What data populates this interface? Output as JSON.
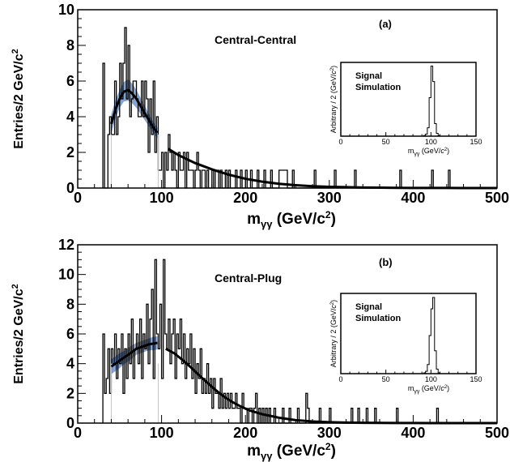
{
  "chart_data": [
    {
      "type": "histogram",
      "panel_label": "(a)",
      "region": "Central-Central",
      "xlabel": "m",
      "xlabel_sub": "γγ",
      "xlabel_unit": " (GeV/c",
      "xlabel_sup": "2",
      "xlabel_end": ")",
      "ylabel": "Entries/2 GeV/c",
      "ylabel_sup": "2",
      "xlim": [
        0,
        500
      ],
      "ylim": [
        0,
        10
      ],
      "xticks": [
        0,
        100,
        200,
        300,
        400,
        500
      ],
      "yticks": [
        0,
        2,
        4,
        6,
        8,
        10
      ],
      "bin_width": 2,
      "bins": [
        [
          30,
          7
        ],
        [
          32,
          0
        ],
        [
          34,
          0
        ],
        [
          36,
          3
        ],
        [
          38,
          4
        ],
        [
          40,
          3
        ],
        [
          42,
          3
        ],
        [
          44,
          6
        ],
        [
          46,
          3
        ],
        [
          48,
          4
        ],
        [
          50,
          7
        ],
        [
          52,
          5
        ],
        [
          54,
          7
        ],
        [
          56,
          9
        ],
        [
          58,
          5
        ],
        [
          60,
          8
        ],
        [
          62,
          4
        ],
        [
          64,
          5
        ],
        [
          66,
          6
        ],
        [
          68,
          6
        ],
        [
          70,
          5
        ],
        [
          72,
          4
        ],
        [
          74,
          4
        ],
        [
          76,
          6
        ],
        [
          78,
          4
        ],
        [
          80,
          6
        ],
        [
          82,
          5
        ],
        [
          84,
          2
        ],
        [
          86,
          5
        ],
        [
          88,
          3
        ],
        [
          90,
          6
        ],
        [
          92,
          2
        ],
        [
          94,
          4
        ],
        [
          96,
          1
        ],
        [
          98,
          1
        ],
        [
          100,
          2
        ],
        [
          102,
          0
        ],
        [
          104,
          2
        ],
        [
          106,
          1
        ],
        [
          108,
          3
        ],
        [
          110,
          2
        ],
        [
          112,
          1
        ],
        [
          114,
          2
        ],
        [
          116,
          1
        ],
        [
          118,
          0
        ],
        [
          120,
          2
        ],
        [
          122,
          1
        ],
        [
          124,
          1
        ],
        [
          126,
          2
        ],
        [
          128,
          0
        ],
        [
          130,
          2
        ],
        [
          132,
          1
        ],
        [
          134,
          1
        ],
        [
          136,
          1
        ],
        [
          138,
          0
        ],
        [
          140,
          1
        ],
        [
          142,
          2
        ],
        [
          144,
          1
        ],
        [
          146,
          0
        ],
        [
          148,
          1
        ],
        [
          150,
          1
        ],
        [
          152,
          0
        ],
        [
          154,
          1
        ],
        [
          156,
          0
        ],
        [
          158,
          0
        ],
        [
          160,
          1
        ],
        [
          162,
          0
        ],
        [
          164,
          1
        ],
        [
          166,
          1
        ],
        [
          168,
          0
        ],
        [
          170,
          1
        ],
        [
          172,
          0
        ],
        [
          174,
          0
        ],
        [
          176,
          1
        ],
        [
          178,
          0
        ],
        [
          180,
          1
        ],
        [
          182,
          0
        ],
        [
          184,
          0
        ],
        [
          186,
          0
        ],
        [
          188,
          1
        ],
        [
          190,
          0
        ],
        [
          192,
          0
        ],
        [
          194,
          1
        ],
        [
          196,
          0
        ],
        [
          198,
          0
        ],
        [
          200,
          1
        ],
        [
          202,
          0
        ],
        [
          204,
          0
        ],
        [
          206,
          1
        ],
        [
          208,
          0
        ],
        [
          210,
          0
        ],
        [
          212,
          0
        ],
        [
          214,
          1
        ],
        [
          216,
          0
        ],
        [
          218,
          0
        ],
        [
          220,
          0
        ],
        [
          222,
          1
        ],
        [
          224,
          0
        ],
        [
          226,
          0
        ],
        [
          228,
          0
        ],
        [
          230,
          1
        ],
        [
          232,
          0
        ],
        [
          240,
          1
        ],
        [
          250,
          0
        ],
        [
          256,
          1
        ],
        [
          258,
          0
        ],
        [
          282,
          1
        ],
        [
          284,
          0
        ],
        [
          306,
          1
        ],
        [
          308,
          0
        ],
        [
          330,
          1
        ],
        [
          332,
          0
        ],
        [
          384,
          1
        ],
        [
          386,
          0
        ],
        [
          422,
          1
        ],
        [
          424,
          0
        ],
        [
          442,
          1
        ],
        [
          444,
          0
        ]
      ],
      "fit_low": {
        "x": [
          40,
          45,
          50,
          55,
          60,
          65,
          70,
          75,
          80,
          85,
          90,
          95
        ],
        "y": [
          3.6,
          4.4,
          5.0,
          5.4,
          5.5,
          5.3,
          5.0,
          4.6,
          4.2,
          3.8,
          3.4,
          3.1
        ]
      },
      "fit_high": {
        "x": [
          108,
          120,
          140,
          160,
          180,
          200,
          220,
          240,
          260,
          280,
          300,
          320,
          340,
          360,
          380,
          400,
          420,
          440,
          460,
          480,
          500
        ],
        "y": [
          2.2,
          1.85,
          1.4,
          1.05,
          0.75,
          0.52,
          0.36,
          0.24,
          0.16,
          0.1,
          0.07,
          0.05,
          0.03,
          0.02,
          0.012,
          0.008,
          0.005,
          0.003,
          0.002,
          0.001,
          0.001
        ]
      },
      "band_low": {
        "x": [
          40,
          45,
          50,
          55,
          60,
          65,
          70,
          75,
          80,
          85,
          90,
          95
        ],
        "half_width": [
          0.55,
          0.5,
          0.5,
          0.55,
          0.6,
          0.55,
          0.5,
          0.45,
          0.4,
          0.35,
          0.3,
          0.3
        ]
      },
      "inset": {
        "label_line1": "Signal",
        "label_line2": "Simulation",
        "ylabel": "Arbitrary / 2 (GeV/",
        "ylabel_c": "c",
        "ylabel_sup": "2",
        "ylabel_end": ")",
        "xlabel": "m",
        "xlabel_sub": "γγ",
        "xlabel_unit": " (GeV/",
        "xlabel_c": "c",
        "xlabel_sup": "2",
        "xlabel_end": ")",
        "xlim": [
          0,
          150
        ],
        "xticks": [
          0,
          50,
          100,
          150
        ],
        "peak_x": [
          92,
          94,
          96,
          98,
          100,
          102,
          104,
          106,
          108
        ],
        "peak_y": [
          0.01,
          0.03,
          0.12,
          0.55,
          1.0,
          0.78,
          0.18,
          0.04,
          0.01
        ]
      }
    },
    {
      "type": "histogram",
      "panel_label": "(b)",
      "region": "Central-Plug",
      "xlabel": "m",
      "xlabel_sub": "γγ",
      "xlabel_unit": " (GeV/c",
      "xlabel_sup": "2",
      "xlabel_end": ")",
      "ylabel": "Entries/2 GeV/c",
      "ylabel_sup": "2",
      "xlim": [
        0,
        500
      ],
      "ylim": [
        0,
        12
      ],
      "xticks": [
        0,
        100,
        200,
        300,
        400,
        500
      ],
      "yticks": [
        0,
        2,
        4,
        6,
        8,
        10,
        12
      ],
      "bin_width": 2,
      "bins": [
        [
          30,
          6
        ],
        [
          32,
          2
        ],
        [
          34,
          3
        ],
        [
          36,
          5
        ],
        [
          38,
          2
        ],
        [
          40,
          5
        ],
        [
          42,
          4
        ],
        [
          44,
          6
        ],
        [
          46,
          3
        ],
        [
          48,
          5
        ],
        [
          50,
          4
        ],
        [
          52,
          6
        ],
        [
          54,
          2
        ],
        [
          56,
          5
        ],
        [
          58,
          3
        ],
        [
          60,
          6
        ],
        [
          62,
          4
        ],
        [
          64,
          7
        ],
        [
          66,
          3
        ],
        [
          68,
          5
        ],
        [
          70,
          6
        ],
        [
          72,
          4
        ],
        [
          74,
          7
        ],
        [
          76,
          3
        ],
        [
          78,
          6
        ],
        [
          80,
          5
        ],
        [
          82,
          8
        ],
        [
          84,
          4
        ],
        [
          86,
          7
        ],
        [
          88,
          9
        ],
        [
          90,
          3
        ],
        [
          92,
          11
        ],
        [
          94,
          6
        ],
        [
          96,
          5
        ],
        [
          98,
          8
        ],
        [
          100,
          3
        ],
        [
          102,
          11
        ],
        [
          104,
          6
        ],
        [
          106,
          5
        ],
        [
          108,
          7
        ],
        [
          110,
          4
        ],
        [
          112,
          6
        ],
        [
          114,
          7
        ],
        [
          116,
          3
        ],
        [
          118,
          6
        ],
        [
          120,
          5
        ],
        [
          122,
          7
        ],
        [
          124,
          4
        ],
        [
          126,
          6
        ],
        [
          128,
          3
        ],
        [
          130,
          5
        ],
        [
          132,
          4
        ],
        [
          134,
          6
        ],
        [
          136,
          3
        ],
        [
          138,
          5
        ],
        [
          140,
          2
        ],
        [
          142,
          4
        ],
        [
          144,
          3
        ],
        [
          146,
          5
        ],
        [
          148,
          2
        ],
        [
          150,
          3
        ],
        [
          152,
          2
        ],
        [
          154,
          4
        ],
        [
          156,
          2
        ],
        [
          158,
          3
        ],
        [
          160,
          1
        ],
        [
          162,
          3
        ],
        [
          164,
          2
        ],
        [
          166,
          2
        ],
        [
          168,
          1
        ],
        [
          170,
          3
        ],
        [
          172,
          1
        ],
        [
          174,
          2
        ],
        [
          176,
          1
        ],
        [
          178,
          2
        ],
        [
          180,
          1
        ],
        [
          182,
          2
        ],
        [
          184,
          1
        ],
        [
          186,
          1
        ],
        [
          188,
          2
        ],
        [
          190,
          1
        ],
        [
          192,
          1
        ],
        [
          194,
          0
        ],
        [
          196,
          2
        ],
        [
          198,
          1
        ],
        [
          200,
          1
        ],
        [
          202,
          0
        ],
        [
          204,
          1
        ],
        [
          206,
          1
        ],
        [
          208,
          0
        ],
        [
          210,
          1
        ],
        [
          212,
          2
        ],
        [
          214,
          0
        ],
        [
          216,
          1
        ],
        [
          218,
          0
        ],
        [
          220,
          1
        ],
        [
          222,
          0
        ],
        [
          224,
          1
        ],
        [
          226,
          0
        ],
        [
          228,
          1
        ],
        [
          230,
          0
        ],
        [
          234,
          1
        ],
        [
          236,
          0
        ],
        [
          244,
          1
        ],
        [
          246,
          0
        ],
        [
          252,
          1
        ],
        [
          254,
          0
        ],
        [
          262,
          1
        ],
        [
          264,
          0
        ],
        [
          272,
          2
        ],
        [
          274,
          1
        ],
        [
          276,
          0
        ],
        [
          288,
          1
        ],
        [
          290,
          0
        ],
        [
          300,
          1
        ],
        [
          302,
          0
        ],
        [
          326,
          1
        ],
        [
          328,
          0
        ],
        [
          334,
          1
        ],
        [
          336,
          0
        ],
        [
          344,
          1
        ],
        [
          346,
          0
        ],
        [
          354,
          1
        ],
        [
          356,
          0
        ],
        [
          380,
          1
        ],
        [
          382,
          0
        ],
        [
          428,
          1
        ],
        [
          430,
          0
        ]
      ],
      "fit_low": {
        "x": [
          40,
          45,
          50,
          55,
          60,
          65,
          70,
          75,
          80,
          85,
          90,
          95
        ],
        "y": [
          3.8,
          4.0,
          4.2,
          4.4,
          4.6,
          4.8,
          5.0,
          5.1,
          5.2,
          5.3,
          5.35,
          5.4
        ]
      },
      "fit_high": {
        "x": [
          105,
          115,
          125,
          135,
          145,
          155,
          165,
          175,
          185,
          195,
          205,
          220,
          240,
          260,
          280,
          300,
          320,
          340,
          360,
          380,
          400,
          420,
          440,
          460,
          480,
          500
        ],
        "y": [
          5.0,
          4.7,
          4.25,
          3.75,
          3.2,
          2.7,
          2.2,
          1.75,
          1.4,
          1.1,
          0.85,
          0.6,
          0.36,
          0.2,
          0.11,
          0.06,
          0.035,
          0.02,
          0.012,
          0.008,
          0.005,
          0.003,
          0.002,
          0.001,
          0.001,
          0.001
        ]
      },
      "band_low": {
        "x": [
          40,
          45,
          50,
          55,
          60,
          65,
          70,
          75,
          80,
          85,
          90,
          95
        ],
        "half_width": [
          0.5,
          0.5,
          0.5,
          0.45,
          0.45,
          0.45,
          0.4,
          0.4,
          0.4,
          0.4,
          0.45,
          0.45
        ]
      },
      "inset": {
        "label_line1": "Signal",
        "label_line2": "Simulation",
        "ylabel": "Arbitrary / 2 (GeV/",
        "ylabel_c": "c",
        "ylabel_sup": "2",
        "ylabel_end": ")",
        "xlabel": "m",
        "xlabel_sub": "γγ",
        "xlabel_unit": " (GeV/",
        "xlabel_c": "c",
        "xlabel_sup": "2",
        "xlabel_end": ")",
        "xlim": [
          0,
          150
        ],
        "xticks": [
          0,
          50,
          100,
          150
        ],
        "peak_x": [
          92,
          94,
          96,
          98,
          100,
          102,
          104,
          106,
          108
        ],
        "peak_y": [
          0.01,
          0.03,
          0.12,
          0.5,
          0.85,
          1.0,
          0.3,
          0.06,
          0.01
        ]
      }
    }
  ]
}
